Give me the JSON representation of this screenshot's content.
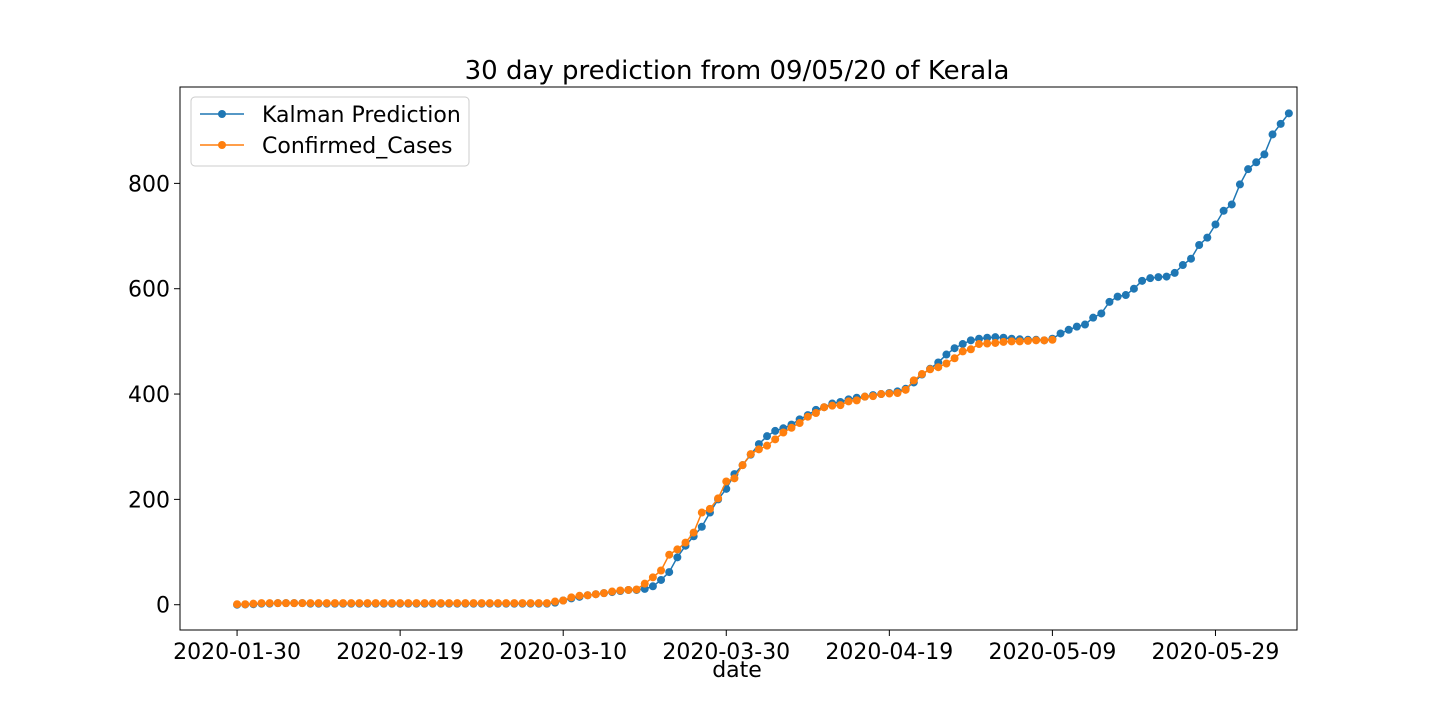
{
  "chart_data": {
    "type": "line",
    "title": "30 day prediction from 09/05/20 of Kerala",
    "xlabel": "date",
    "ylabel": "",
    "start_date": "2020-01-30",
    "xlim": [
      -7,
      130
    ],
    "ylim": [
      -48,
      983
    ],
    "xticks": [
      {
        "day": 0,
        "label": "2020-01-30"
      },
      {
        "day": 20,
        "label": "2020-02-19"
      },
      {
        "day": 40,
        "label": "2020-03-10"
      },
      {
        "day": 60,
        "label": "2020-03-30"
      },
      {
        "day": 80,
        "label": "2020-04-19"
      },
      {
        "day": 100,
        "label": "2020-05-09"
      },
      {
        "day": 120,
        "label": "2020-05-29"
      }
    ],
    "yticks": [
      0,
      200,
      400,
      600,
      800
    ],
    "legend": {
      "position": "top-left"
    },
    "grid": false,
    "series": [
      {
        "name": "Kalman Prediction",
        "color": "#1f77b4",
        "start_day": 0,
        "values": [
          0,
          0.5,
          1,
          2,
          2,
          3,
          3,
          3,
          3,
          2,
          2,
          2,
          2,
          2,
          2,
          2,
          2,
          2,
          2,
          2,
          2,
          2,
          2,
          2,
          2,
          2,
          2,
          2,
          2,
          2,
          2,
          2,
          2,
          2,
          2,
          2,
          2,
          2,
          2,
          4,
          8,
          12,
          15,
          18,
          20,
          22,
          24,
          26,
          28,
          28,
          30,
          35,
          47,
          62,
          90,
          112,
          130,
          148,
          175,
          200,
          220,
          248,
          265,
          285,
          305,
          320,
          330,
          335,
          342,
          352,
          360,
          370,
          375,
          382,
          385,
          390,
          393,
          395,
          398,
          400,
          402,
          405,
          410,
          422,
          437,
          448,
          460,
          475,
          487,
          495,
          502,
          505,
          507,
          508,
          507,
          505,
          504,
          503,
          503,
          502,
          505,
          515,
          522,
          528,
          532,
          545,
          553,
          575,
          585,
          588,
          600,
          615,
          620,
          622,
          623,
          630,
          645,
          657,
          683,
          697,
          722,
          748,
          760,
          798,
          827,
          840,
          855,
          893,
          913,
          933
        ]
      },
      {
        "name": "Confirmed_Cases",
        "color": "#ff7f0e",
        "start_day": 0,
        "values": [
          1,
          1,
          2,
          3,
          3,
          3,
          3,
          3,
          3,
          3,
          3,
          3,
          3,
          3,
          3,
          3,
          3,
          3,
          3,
          3,
          3,
          3,
          3,
          3,
          3,
          3,
          3,
          3,
          3,
          3,
          3,
          3,
          3,
          3,
          3,
          3,
          3,
          3,
          3,
          6,
          8,
          14,
          17,
          18,
          20,
          22,
          25,
          27,
          28,
          29,
          40,
          52,
          65,
          95,
          105,
          118,
          137,
          175,
          182,
          202,
          234,
          240,
          265,
          286,
          295,
          302,
          314,
          327,
          336,
          345,
          357,
          364,
          375,
          378,
          379,
          386,
          388,
          395,
          396,
          400,
          401,
          402,
          408,
          426,
          438,
          447,
          451,
          458,
          468,
          481,
          485,
          495,
          496,
          497,
          499,
          500,
          500,
          501,
          502,
          502,
          503
        ]
      }
    ]
  }
}
